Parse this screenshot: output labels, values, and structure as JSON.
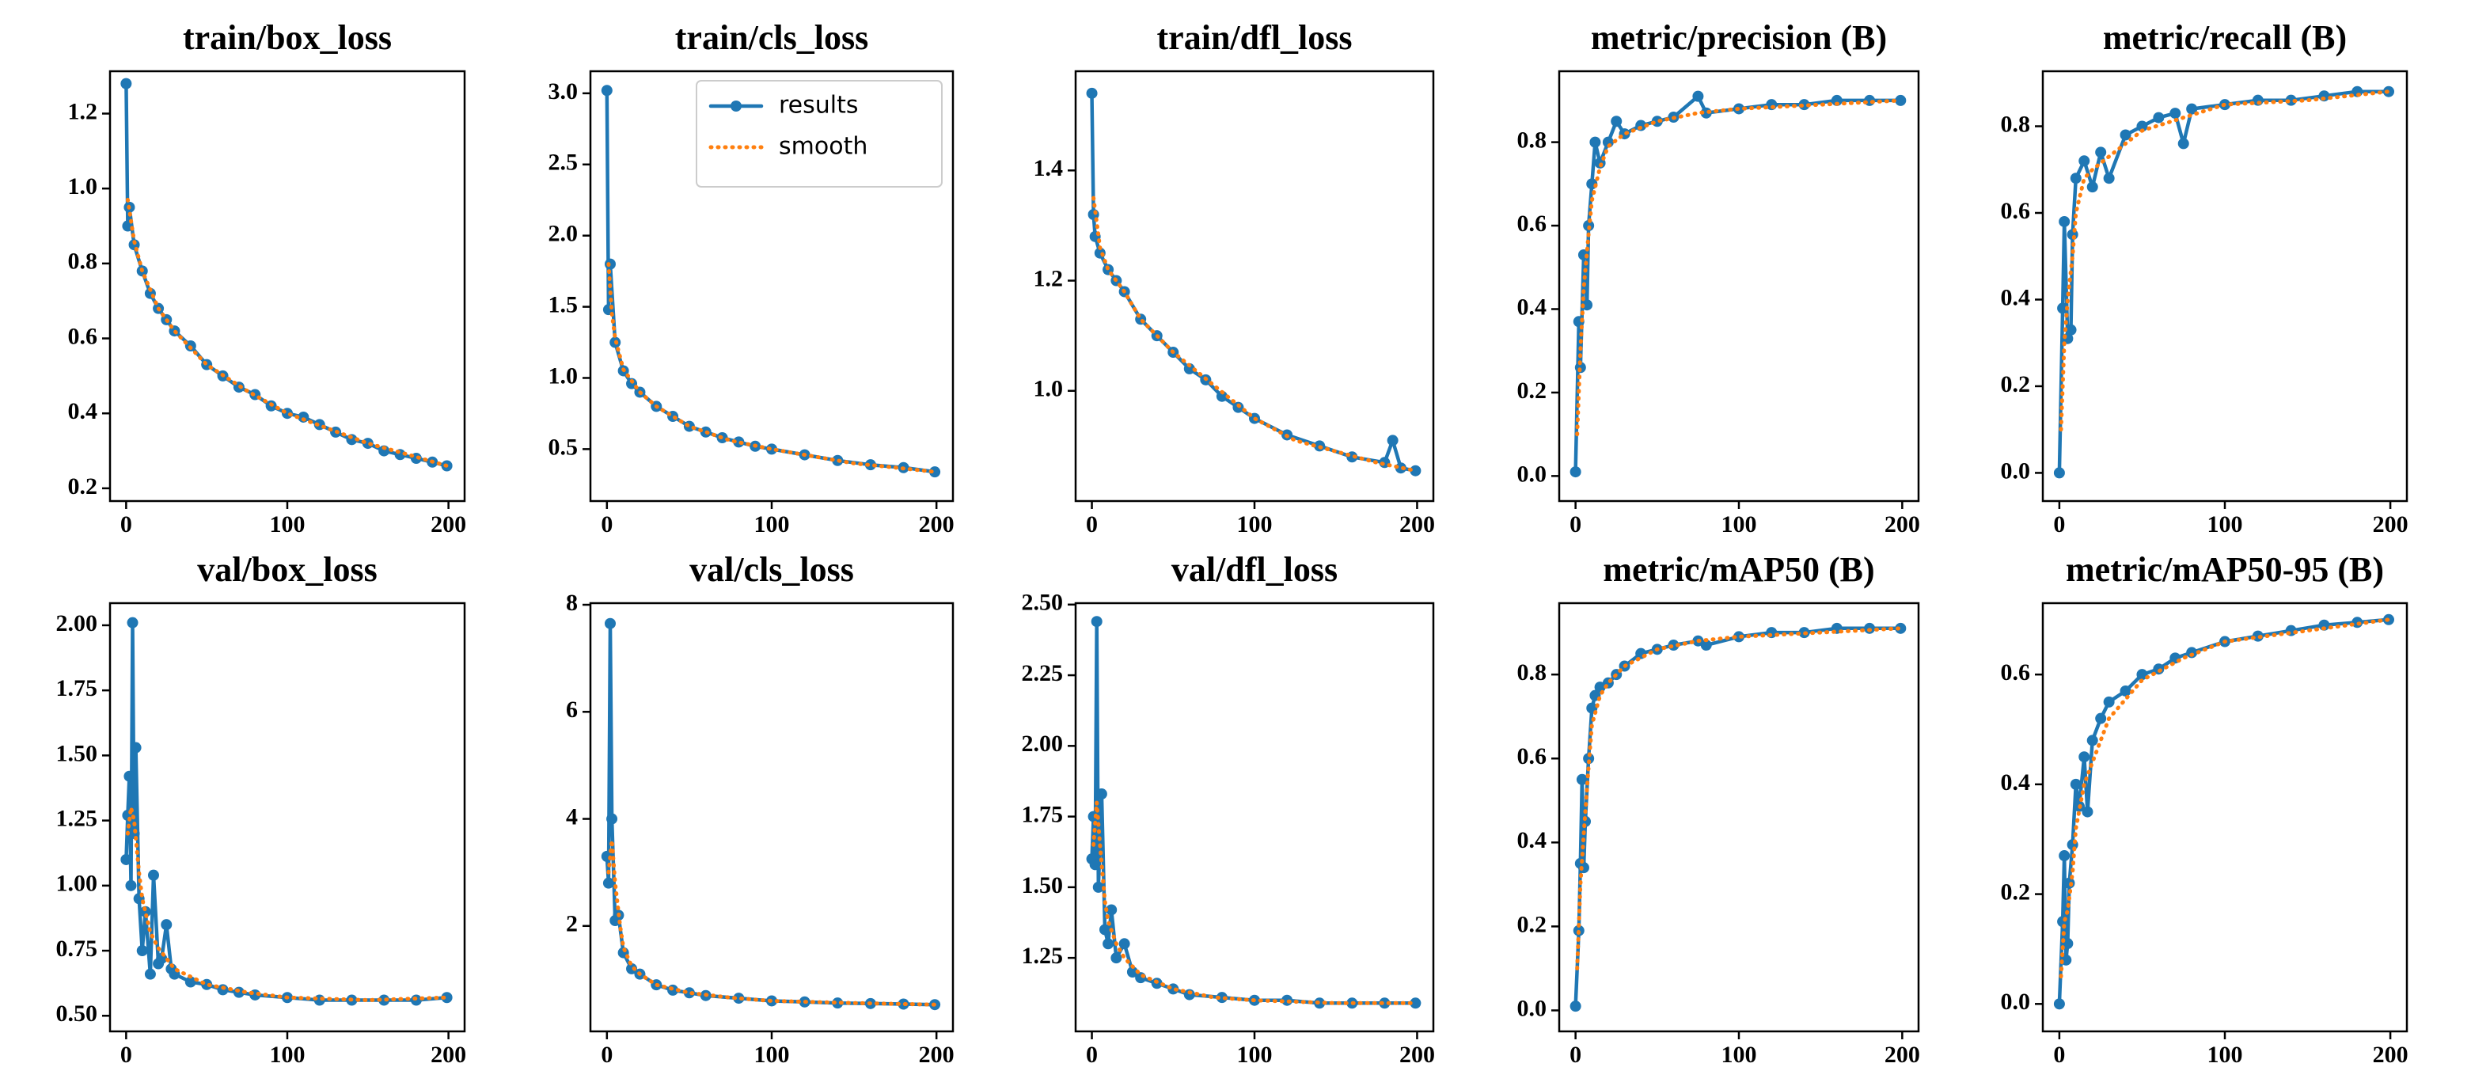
{
  "chart_data": [
    {
      "type": "line",
      "title": "train/box_loss",
      "xlim": [
        -10,
        210
      ],
      "xticks": [
        0,
        100,
        200
      ],
      "ylim": [
        0.166,
        1.313
      ],
      "yticks": [
        0.2,
        0.4,
        0.6,
        0.8,
        {
          "value": 1,
          "label": "1.0"
        },
        1.2
      ],
      "series": [
        {
          "color": "#1f77b4",
          "marker": "o",
          "x": [
            0,
            1,
            2,
            5,
            10,
            15,
            20,
            25,
            30,
            40,
            50,
            60,
            70,
            80,
            90,
            100,
            110,
            120,
            130,
            140,
            150,
            160,
            170,
            180,
            190,
            199
          ],
          "values": [
            1.28,
            0.9,
            0.95,
            0.85,
            0.78,
            0.72,
            0.68,
            0.65,
            0.62,
            0.58,
            0.53,
            0.5,
            0.47,
            0.45,
            0.42,
            0.4,
            0.39,
            0.37,
            0.35,
            0.33,
            0.32,
            0.3,
            0.29,
            0.28,
            0.27,
            0.26
          ]
        },
        {
          "color": "#ff7f0e",
          "linestyle": "dotted",
          "x": [
            1,
            5,
            10,
            20,
            30,
            50,
            75,
            100,
            125,
            150,
            175,
            199
          ],
          "values": [
            0.97,
            0.86,
            0.78,
            0.68,
            0.62,
            0.53,
            0.46,
            0.4,
            0.36,
            0.32,
            0.29,
            0.26
          ]
        }
      ]
    },
    {
      "type": "line",
      "title": "train/cls_loss",
      "xlim": [
        -10,
        210
      ],
      "xticks": [
        0,
        100,
        200
      ],
      "ylim": [
        0.135,
        3.155
      ],
      "yticks": [
        0.5,
        {
          "value": 1,
          "label": "1.0"
        },
        1.5,
        {
          "value": 2,
          "label": "2.0"
        },
        2.5,
        {
          "value": 3,
          "label": "3.0"
        }
      ],
      "legend": "upper right",
      "series": [
        {
          "name": "results",
          "color": "#1f77b4",
          "marker": "o",
          "x": [
            0,
            1,
            2,
            5,
            10,
            15,
            20,
            30,
            40,
            50,
            60,
            70,
            80,
            90,
            100,
            120,
            140,
            160,
            180,
            199
          ],
          "values": [
            3.02,
            1.48,
            1.8,
            1.25,
            1.05,
            0.96,
            0.9,
            0.8,
            0.73,
            0.66,
            0.62,
            0.58,
            0.55,
            0.52,
            0.5,
            0.46,
            0.42,
            0.39,
            0.37,
            0.34
          ]
        },
        {
          "name": "smooth",
          "color": "#ff7f0e",
          "linestyle": "dotted",
          "x": [
            1,
            3,
            5,
            10,
            20,
            30,
            50,
            75,
            100,
            125,
            150,
            175,
            199
          ],
          "values": [
            1.8,
            1.45,
            1.28,
            1.06,
            0.9,
            0.8,
            0.66,
            0.56,
            0.5,
            0.45,
            0.4,
            0.37,
            0.34
          ]
        }
      ]
    },
    {
      "type": "line",
      "title": "train/dfl_loss",
      "xlim": [
        -10,
        210
      ],
      "xticks": [
        0,
        100,
        200
      ],
      "ylim": [
        0.8,
        1.58
      ],
      "yticks": [
        {
          "value": 1,
          "label": "1.0"
        },
        1.2,
        1.4
      ],
      "series": [
        {
          "color": "#1f77b4",
          "marker": "o",
          "x": [
            0,
            1,
            2,
            5,
            10,
            15,
            20,
            30,
            40,
            50,
            60,
            70,
            80,
            90,
            100,
            120,
            140,
            160,
            180,
            185,
            190,
            199
          ],
          "values": [
            1.54,
            1.32,
            1.28,
            1.25,
            1.22,
            1.2,
            1.18,
            1.13,
            1.1,
            1.07,
            1.04,
            1.02,
            0.99,
            0.97,
            0.95,
            0.92,
            0.9,
            0.88,
            0.87,
            0.91,
            0.86,
            0.855
          ]
        },
        {
          "color": "#ff7f0e",
          "linestyle": "dotted",
          "x": [
            1,
            5,
            10,
            20,
            30,
            50,
            75,
            100,
            125,
            150,
            175,
            199
          ],
          "values": [
            1.35,
            1.26,
            1.22,
            1.18,
            1.13,
            1.07,
            1.01,
            0.95,
            0.91,
            0.89,
            0.87,
            0.855
          ]
        }
      ]
    },
    {
      "type": "line",
      "title": "metric/precision (B)",
      "xlim": [
        -10,
        210
      ],
      "xticks": [
        0,
        100,
        200
      ],
      "ylim": [
        -0.06,
        0.97
      ],
      "yticks": [
        {
          "value": 0,
          "label": "0.0"
        },
        0.2,
        0.4,
        0.6,
        0.8
      ],
      "series": [
        {
          "color": "#1f77b4",
          "marker": "o",
          "x": [
            0,
            2,
            3,
            5,
            7,
            8,
            10,
            12,
            15,
            20,
            25,
            30,
            40,
            50,
            60,
            75,
            80,
            100,
            120,
            140,
            160,
            180,
            199
          ],
          "values": [
            0.01,
            0.37,
            0.26,
            0.53,
            0.41,
            0.6,
            0.7,
            0.8,
            0.75,
            0.8,
            0.85,
            0.82,
            0.84,
            0.85,
            0.86,
            0.91,
            0.87,
            0.88,
            0.89,
            0.89,
            0.9,
            0.9,
            0.9
          ]
        },
        {
          "color": "#ff7f0e",
          "linestyle": "dotted",
          "x": [
            1,
            3,
            5,
            8,
            10,
            15,
            20,
            30,
            50,
            75,
            100,
            150,
            199
          ],
          "values": [
            0.1,
            0.3,
            0.45,
            0.58,
            0.66,
            0.74,
            0.79,
            0.82,
            0.85,
            0.87,
            0.88,
            0.89,
            0.9
          ]
        }
      ]
    },
    {
      "type": "line",
      "title": "metric/recall (B)",
      "xlim": [
        -10,
        210
      ],
      "xticks": [
        0,
        100,
        200
      ],
      "ylim": [
        -0.065,
        0.927
      ],
      "yticks": [
        {
          "value": 0,
          "label": "0.0"
        },
        0.2,
        0.4,
        0.6,
        0.8
      ],
      "series": [
        {
          "color": "#1f77b4",
          "marker": "o",
          "x": [
            0,
            2,
            3,
            5,
            7,
            8,
            10,
            15,
            20,
            25,
            30,
            40,
            50,
            60,
            70,
            75,
            80,
            100,
            120,
            140,
            160,
            180,
            199
          ],
          "values": [
            0,
            0.38,
            0.58,
            0.31,
            0.33,
            0.55,
            0.68,
            0.72,
            0.66,
            0.74,
            0.68,
            0.78,
            0.8,
            0.82,
            0.83,
            0.76,
            0.84,
            0.85,
            0.86,
            0.86,
            0.87,
            0.88,
            0.88
          ]
        },
        {
          "color": "#ff7f0e",
          "linestyle": "dotted",
          "x": [
            1,
            3,
            5,
            8,
            10,
            15,
            20,
            30,
            50,
            75,
            100,
            150,
            199
          ],
          "values": [
            0.1,
            0.3,
            0.4,
            0.5,
            0.6,
            0.68,
            0.7,
            0.73,
            0.79,
            0.82,
            0.85,
            0.86,
            0.88
          ]
        }
      ]
    },
    {
      "type": "line",
      "title": "val/box_loss",
      "xlim": [
        -10,
        210
      ],
      "xticks": [
        0,
        100,
        200
      ],
      "ylim": [
        0.44,
        2.085
      ],
      "yticks": [
        {
          "value": 0.5,
          "label": "0.50"
        },
        0.75,
        {
          "value": 1,
          "label": "1.00"
        },
        1.25,
        {
          "value": 1.5,
          "label": "1.50"
        },
        1.75,
        {
          "value": 2,
          "label": "2.00"
        }
      ],
      "series": [
        {
          "color": "#1f77b4",
          "marker": "o",
          "x": [
            0,
            1,
            2,
            3,
            4,
            5,
            6,
            8,
            10,
            12,
            15,
            17,
            20,
            22,
            25,
            28,
            30,
            40,
            50,
            60,
            70,
            80,
            100,
            120,
            140,
            160,
            180,
            199
          ],
          "values": [
            1.1,
            1.27,
            1.42,
            1.0,
            2.01,
            1.2,
            1.53,
            0.95,
            0.75,
            0.9,
            0.66,
            1.04,
            0.7,
            0.72,
            0.85,
            0.68,
            0.66,
            0.63,
            0.62,
            0.6,
            0.59,
            0.58,
            0.57,
            0.56,
            0.56,
            0.56,
            0.56,
            0.57
          ]
        },
        {
          "color": "#ff7f0e",
          "linestyle": "dotted",
          "x": [
            1,
            3,
            5,
            8,
            10,
            15,
            20,
            30,
            50,
            75,
            100,
            150,
            199
          ],
          "values": [
            1.2,
            1.3,
            1.25,
            1.05,
            0.95,
            0.82,
            0.76,
            0.68,
            0.62,
            0.59,
            0.57,
            0.56,
            0.57
          ]
        }
      ]
    },
    {
      "type": "line",
      "title": "val/cls_loss",
      "xlim": [
        -10,
        210
      ],
      "xticks": [
        0,
        100,
        200
      ],
      "ylim": [
        0.03,
        8.03
      ],
      "yticks": [
        2,
        4,
        6,
        8
      ],
      "series": [
        {
          "color": "#1f77b4",
          "marker": "o",
          "x": [
            0,
            1,
            2,
            3,
            5,
            7,
            10,
            15,
            20,
            30,
            40,
            50,
            60,
            80,
            100,
            120,
            140,
            160,
            180,
            199
          ],
          "values": [
            3.3,
            2.8,
            7.65,
            4.0,
            2.1,
            2.2,
            1.5,
            1.2,
            1.1,
            0.9,
            0.8,
            0.75,
            0.7,
            0.65,
            0.6,
            0.58,
            0.56,
            0.55,
            0.54,
            0.53
          ]
        },
        {
          "color": "#ff7f0e",
          "linestyle": "dotted",
          "x": [
            1,
            3,
            5,
            8,
            10,
            15,
            20,
            30,
            50,
            75,
            100,
            150,
            199
          ],
          "values": [
            3.0,
            3.6,
            2.8,
            2.0,
            1.6,
            1.25,
            1.1,
            0.9,
            0.75,
            0.66,
            0.6,
            0.56,
            0.53
          ]
        }
      ]
    },
    {
      "type": "line",
      "title": "val/dfl_loss",
      "xlim": [
        -10,
        210
      ],
      "xticks": [
        0,
        100,
        200
      ],
      "ylim": [
        0.99,
        2.505
      ],
      "yticks": [
        1.25,
        {
          "value": 1.5,
          "label": "1.50"
        },
        1.75,
        {
          "value": 2,
          "label": "2.00"
        },
        2.25,
        {
          "value": 2.5,
          "label": "2.50"
        }
      ],
      "series": [
        {
          "color": "#1f77b4",
          "marker": "o",
          "x": [
            0,
            1,
            2,
            3,
            4,
            6,
            8,
            10,
            12,
            15,
            20,
            25,
            30,
            40,
            50,
            60,
            80,
            100,
            120,
            140,
            160,
            180,
            199
          ],
          "values": [
            1.6,
            1.75,
            1.58,
            2.44,
            1.5,
            1.83,
            1.35,
            1.3,
            1.42,
            1.25,
            1.3,
            1.2,
            1.18,
            1.16,
            1.14,
            1.12,
            1.11,
            1.1,
            1.1,
            1.09,
            1.09,
            1.09,
            1.09
          ]
        },
        {
          "color": "#ff7f0e",
          "linestyle": "dotted",
          "x": [
            1,
            3,
            5,
            8,
            10,
            15,
            20,
            30,
            50,
            75,
            100,
            150,
            199
          ],
          "values": [
            1.65,
            1.8,
            1.65,
            1.45,
            1.38,
            1.3,
            1.25,
            1.19,
            1.14,
            1.11,
            1.1,
            1.09,
            1.09
          ]
        }
      ]
    },
    {
      "type": "line",
      "title": "metric/mAP50 (B)",
      "xlim": [
        -10,
        210
      ],
      "xticks": [
        0,
        100,
        200
      ],
      "ylim": [
        -0.05,
        0.97
      ],
      "yticks": [
        {
          "value": 0,
          "label": "0.0"
        },
        0.2,
        0.4,
        0.6,
        0.8
      ],
      "series": [
        {
          "color": "#1f77b4",
          "marker": "o",
          "x": [
            0,
            2,
            3,
            4,
            5,
            6,
            8,
            10,
            12,
            15,
            20,
            25,
            30,
            40,
            50,
            60,
            75,
            80,
            100,
            120,
            140,
            160,
            180,
            199
          ],
          "values": [
            0.01,
            0.19,
            0.35,
            0.55,
            0.34,
            0.45,
            0.6,
            0.72,
            0.75,
            0.77,
            0.78,
            0.8,
            0.82,
            0.85,
            0.86,
            0.87,
            0.88,
            0.87,
            0.89,
            0.9,
            0.9,
            0.91,
            0.91,
            0.91
          ]
        },
        {
          "color": "#ff7f0e",
          "linestyle": "dotted",
          "x": [
            1,
            3,
            5,
            8,
            10,
            15,
            20,
            30,
            50,
            75,
            100,
            150,
            199
          ],
          "values": [
            0.1,
            0.3,
            0.42,
            0.58,
            0.68,
            0.75,
            0.78,
            0.82,
            0.86,
            0.88,
            0.89,
            0.9,
            0.91
          ]
        }
      ]
    },
    {
      "type": "line",
      "title": "metric/mAP50-95 (B)",
      "xlim": [
        -10,
        210
      ],
      "xticks": [
        0,
        100,
        200
      ],
      "ylim": [
        -0.05,
        0.73
      ],
      "yticks": [
        {
          "value": 0,
          "label": "0.0"
        },
        0.2,
        0.4,
        0.6
      ],
      "series": [
        {
          "color": "#1f77b4",
          "marker": "o",
          "x": [
            0,
            2,
            3,
            4,
            5,
            6,
            8,
            10,
            12,
            15,
            17,
            20,
            25,
            30,
            40,
            50,
            60,
            70,
            80,
            100,
            120,
            140,
            160,
            180,
            199
          ],
          "values": [
            0,
            0.15,
            0.27,
            0.08,
            0.11,
            0.22,
            0.29,
            0.4,
            0.36,
            0.45,
            0.35,
            0.48,
            0.52,
            0.55,
            0.57,
            0.6,
            0.61,
            0.63,
            0.64,
            0.66,
            0.67,
            0.68,
            0.69,
            0.695,
            0.7
          ]
        },
        {
          "color": "#ff7f0e",
          "linestyle": "dotted",
          "x": [
            1,
            3,
            5,
            8,
            10,
            15,
            20,
            30,
            50,
            75,
            100,
            150,
            199
          ],
          "values": [
            0.05,
            0.15,
            0.17,
            0.24,
            0.32,
            0.4,
            0.44,
            0.52,
            0.59,
            0.63,
            0.66,
            0.68,
            0.7
          ]
        }
      ]
    }
  ]
}
